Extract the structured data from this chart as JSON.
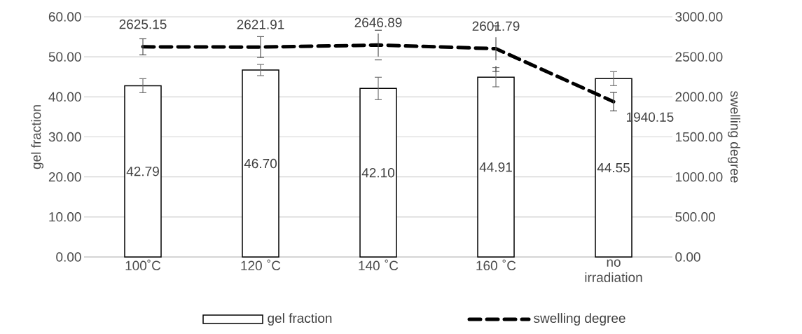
{
  "chart_data": {
    "type": "bar",
    "xlabel": null,
    "ylabel": "gel fraction",
    "y2label": "swelling degree",
    "categories": [
      "100˚C",
      "120 ˚C",
      "140 ˚C",
      "160 ˚C",
      "no irradiation"
    ],
    "series": [
      {
        "name": "gel fraction",
        "color": "#ffffff",
        "values": [
          42.79,
          46.7,
          42.1,
          44.91,
          44.55
        ],
        "value_labels": [
          "42.79",
          "46.70",
          "42.10",
          "44.91",
          "44.55"
        ],
        "errors": [
          1.75,
          1.4,
          2.8,
          2.4,
          1.75
        ]
      },
      {
        "name": "swelling degree",
        "type": "line",
        "axis": "y2",
        "color": "#000000",
        "line_style": "dashed",
        "marker": "none",
        "values": [
          2625.15,
          2621.91,
          2646.89,
          2601.79,
          1940.15
        ],
        "value_labels": [
          "2625.15",
          "2621.91",
          "2646.89",
          "2601.79",
          "1940.15"
        ],
        "errors": [
          100,
          130,
          185,
          285,
          115
        ]
      }
    ],
    "ylim": [
      0,
      60
    ],
    "yticks": [
      {
        "value": 0,
        "label": "0.00"
      },
      {
        "value": 10,
        "label": "10.00"
      },
      {
        "value": 20,
        "label": "20.00"
      },
      {
        "value": 30,
        "label": "30.00"
      },
      {
        "value": 40,
        "label": "40.00"
      },
      {
        "value": 50,
        "label": "50.00"
      },
      {
        "value": 60,
        "label": "60.00"
      }
    ],
    "y2lim": [
      0,
      3000
    ],
    "y2ticks": [
      {
        "value": 0,
        "label": "0.00"
      },
      {
        "value": 500,
        "label": "500.00"
      },
      {
        "value": 1000,
        "label": "1000.00"
      },
      {
        "value": 1500,
        "label": "1500.00"
      },
      {
        "value": 2000,
        "label": "2000.00"
      },
      {
        "value": 2500,
        "label": "2500.00"
      },
      {
        "value": 3000,
        "label": "3000.00"
      }
    ],
    "grid": "y",
    "legend": "bottom"
  }
}
